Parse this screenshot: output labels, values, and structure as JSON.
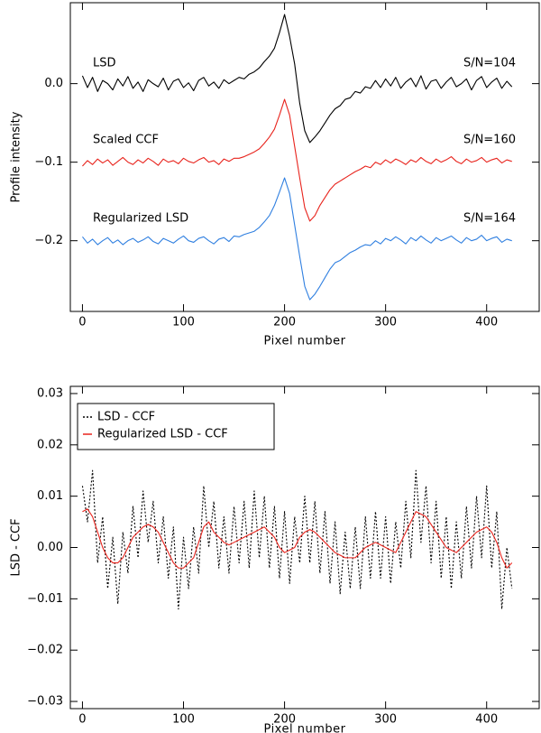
{
  "chart_data": [
    {
      "type": "line",
      "xlabel": "Pixel number",
      "ylabel": "Profile intensity",
      "xlim": [
        -12,
        452
      ],
      "ylim": [
        -0.29,
        0.103
      ],
      "xticks": [
        0,
        100,
        200,
        300,
        400
      ],
      "yticks": [
        {
          "value": -0.2,
          "label": "−0.2"
        },
        {
          "value": -0.1,
          "label": "−0.1"
        },
        {
          "value": 0.0,
          "label": "0.0"
        }
      ],
      "x": [
        0,
        5,
        10,
        15,
        20,
        25,
        30,
        35,
        40,
        45,
        50,
        55,
        60,
        65,
        70,
        75,
        80,
        85,
        90,
        95,
        100,
        105,
        110,
        115,
        120,
        125,
        130,
        135,
        140,
        145,
        150,
        155,
        160,
        165,
        170,
        175,
        180,
        185,
        190,
        195,
        200,
        205,
        210,
        215,
        220,
        225,
        230,
        235,
        240,
        245,
        250,
        255,
        260,
        265,
        270,
        275,
        280,
        285,
        290,
        295,
        300,
        305,
        310,
        315,
        320,
        325,
        330,
        335,
        340,
        345,
        350,
        355,
        360,
        365,
        370,
        375,
        380,
        385,
        390,
        395,
        400,
        405,
        410,
        415,
        420,
        425
      ],
      "series": [
        {
          "name": "LSD",
          "sn_label": "S/N=104",
          "color": "#000000",
          "values": [
            0.01,
            -0.005,
            0.008,
            -0.01,
            0.004,
            0.0,
            -0.008,
            0.006,
            -0.003,
            0.009,
            -0.006,
            0.002,
            -0.01,
            0.005,
            0.0,
            -0.004,
            0.007,
            -0.008,
            0.003,
            0.006,
            -0.005,
            0.001,
            -0.009,
            0.004,
            0.008,
            -0.003,
            0.002,
            -0.006,
            0.005,
            0.0,
            0.004,
            0.008,
            0.006,
            0.012,
            0.015,
            0.02,
            0.028,
            0.035,
            0.045,
            0.065,
            0.088,
            0.06,
            0.025,
            -0.025,
            -0.06,
            -0.075,
            -0.068,
            -0.06,
            -0.05,
            -0.04,
            -0.032,
            -0.028,
            -0.02,
            -0.018,
            -0.01,
            -0.012,
            -0.004,
            -0.006,
            0.004,
            -0.005,
            0.006,
            -0.003,
            0.008,
            -0.006,
            0.002,
            0.007,
            -0.004,
            0.01,
            -0.007,
            0.003,
            0.005,
            -0.006,
            0.002,
            0.008,
            -0.004,
            0.0,
            0.006,
            -0.008,
            0.004,
            0.009,
            -0.005,
            0.002,
            0.007,
            -0.006,
            0.003,
            -0.004
          ]
        },
        {
          "name": "Scaled CCF",
          "sn_label": "S/N=160",
          "color": "#e8231c",
          "values": [
            -0.105,
            -0.098,
            -0.103,
            -0.096,
            -0.101,
            -0.097,
            -0.104,
            -0.099,
            -0.094,
            -0.1,
            -0.103,
            -0.097,
            -0.101,
            -0.095,
            -0.099,
            -0.104,
            -0.096,
            -0.1,
            -0.098,
            -0.102,
            -0.095,
            -0.099,
            -0.101,
            -0.097,
            -0.094,
            -0.1,
            -0.098,
            -0.103,
            -0.096,
            -0.099,
            -0.095,
            -0.095,
            -0.093,
            -0.09,
            -0.087,
            -0.083,
            -0.076,
            -0.068,
            -0.058,
            -0.04,
            -0.02,
            -0.04,
            -0.08,
            -0.12,
            -0.158,
            -0.175,
            -0.168,
            -0.155,
            -0.145,
            -0.135,
            -0.128,
            -0.124,
            -0.12,
            -0.116,
            -0.112,
            -0.109,
            -0.105,
            -0.107,
            -0.1,
            -0.103,
            -0.097,
            -0.101,
            -0.096,
            -0.099,
            -0.103,
            -0.097,
            -0.1,
            -0.094,
            -0.099,
            -0.102,
            -0.096,
            -0.1,
            -0.097,
            -0.093,
            -0.099,
            -0.102,
            -0.096,
            -0.1,
            -0.098,
            -0.094,
            -0.1,
            -0.097,
            -0.095,
            -0.101,
            -0.097,
            -0.099
          ]
        },
        {
          "name": "Regularized LSD",
          "sn_label": "S/N=164",
          "color": "#2f7fe0",
          "values": [
            -0.195,
            -0.203,
            -0.198,
            -0.205,
            -0.2,
            -0.196,
            -0.203,
            -0.199,
            -0.205,
            -0.2,
            -0.197,
            -0.202,
            -0.199,
            -0.195,
            -0.201,
            -0.204,
            -0.197,
            -0.2,
            -0.203,
            -0.198,
            -0.194,
            -0.2,
            -0.202,
            -0.197,
            -0.195,
            -0.2,
            -0.204,
            -0.198,
            -0.196,
            -0.201,
            -0.194,
            -0.195,
            -0.192,
            -0.19,
            -0.188,
            -0.183,
            -0.176,
            -0.168,
            -0.155,
            -0.138,
            -0.12,
            -0.14,
            -0.18,
            -0.22,
            -0.258,
            -0.275,
            -0.268,
            -0.258,
            -0.247,
            -0.236,
            -0.228,
            -0.225,
            -0.22,
            -0.215,
            -0.212,
            -0.208,
            -0.205,
            -0.206,
            -0.2,
            -0.204,
            -0.197,
            -0.2,
            -0.195,
            -0.199,
            -0.204,
            -0.196,
            -0.2,
            -0.194,
            -0.199,
            -0.203,
            -0.196,
            -0.2,
            -0.197,
            -0.194,
            -0.199,
            -0.203,
            -0.196,
            -0.2,
            -0.198,
            -0.193,
            -0.2,
            -0.197,
            -0.195,
            -0.202,
            -0.198,
            -0.2
          ]
        }
      ]
    },
    {
      "type": "line",
      "xlabel": "Pixel number",
      "ylabel": "LSD - CCF",
      "xlim": [
        -12,
        452
      ],
      "ylim": [
        -0.0314,
        0.0314
      ],
      "xticks": [
        0,
        100,
        200,
        300,
        400
      ],
      "yticks": [
        {
          "value": -0.03,
          "label": "−0.03"
        },
        {
          "value": -0.02,
          "label": "−0.02"
        },
        {
          "value": -0.01,
          "label": "−0.01"
        },
        {
          "value": 0.0,
          "label": "0.00"
        },
        {
          "value": 0.01,
          "label": "0.01"
        },
        {
          "value": 0.02,
          "label": "0.02"
        },
        {
          "value": 0.03,
          "label": "0.03"
        }
      ],
      "legend": "upper left",
      "x": [
        0,
        5,
        10,
        15,
        20,
        25,
        30,
        35,
        40,
        45,
        50,
        55,
        60,
        65,
        70,
        75,
        80,
        85,
        90,
        95,
        100,
        105,
        110,
        115,
        120,
        125,
        130,
        135,
        140,
        145,
        150,
        155,
        160,
        165,
        170,
        175,
        180,
        185,
        190,
        195,
        200,
        205,
        210,
        215,
        220,
        225,
        230,
        235,
        240,
        245,
        250,
        255,
        260,
        265,
        270,
        275,
        280,
        285,
        290,
        295,
        300,
        305,
        310,
        315,
        320,
        325,
        330,
        335,
        340,
        345,
        350,
        355,
        360,
        365,
        370,
        375,
        380,
        385,
        390,
        395,
        400,
        405,
        410,
        415,
        420,
        425
      ],
      "series": [
        {
          "name": "LSD - CCF",
          "color": "#000000",
          "dash": "2,2",
          "values": [
            0.012,
            0.005,
            0.015,
            -0.003,
            0.006,
            -0.008,
            0.002,
            -0.011,
            0.003,
            -0.005,
            0.008,
            -0.002,
            0.011,
            0.001,
            0.009,
            -0.003,
            0.006,
            -0.006,
            0.004,
            -0.012,
            0.002,
            -0.008,
            0.004,
            -0.005,
            0.012,
            0.0,
            0.009,
            -0.004,
            0.006,
            -0.005,
            0.008,
            -0.003,
            0.009,
            -0.004,
            0.011,
            -0.002,
            0.01,
            -0.004,
            0.008,
            -0.006,
            0.007,
            -0.007,
            0.006,
            -0.003,
            0.01,
            -0.003,
            0.009,
            -0.005,
            0.007,
            -0.007,
            0.005,
            -0.009,
            0.003,
            -0.008,
            0.004,
            -0.008,
            0.006,
            -0.006,
            0.007,
            -0.006,
            0.006,
            -0.007,
            0.005,
            -0.004,
            0.009,
            -0.002,
            0.015,
            0.001,
            0.012,
            -0.003,
            0.009,
            -0.006,
            0.006,
            -0.008,
            0.005,
            -0.006,
            0.008,
            -0.004,
            0.01,
            -0.002,
            0.012,
            -0.004,
            0.007,
            -0.012,
            0.0,
            -0.008
          ]
        },
        {
          "name": "Regularized LSD - CCF",
          "color": "#e8231c",
          "values": [
            0.007,
            0.0075,
            0.006,
            0.003,
            0.0,
            -0.002,
            -0.003,
            -0.003,
            -0.002,
            0.0,
            0.002,
            0.003,
            0.004,
            0.0045,
            0.004,
            0.003,
            0.001,
            -0.001,
            -0.003,
            -0.004,
            -0.004,
            -0.003,
            -0.002,
            0.001,
            0.004,
            0.005,
            0.003,
            0.002,
            0.001,
            0.0005,
            0.001,
            0.0015,
            0.002,
            0.0025,
            0.003,
            0.0035,
            0.004,
            0.003,
            0.002,
            0.0,
            -0.001,
            -0.0005,
            0.0,
            0.002,
            0.003,
            0.0035,
            0.003,
            0.002,
            0.001,
            0.0,
            -0.001,
            -0.0015,
            -0.002,
            -0.002,
            -0.002,
            -0.001,
            0.0,
            0.0005,
            0.001,
            0.0005,
            0.0,
            -0.0005,
            -0.001,
            0.001,
            0.003,
            0.005,
            0.007,
            0.0065,
            0.006,
            0.0045,
            0.003,
            0.0015,
            0.0,
            -0.0005,
            -0.001,
            0.0,
            0.001,
            0.002,
            0.003,
            0.0035,
            0.004,
            0.003,
            0.001,
            -0.002,
            -0.004,
            -0.003
          ]
        }
      ]
    }
  ]
}
